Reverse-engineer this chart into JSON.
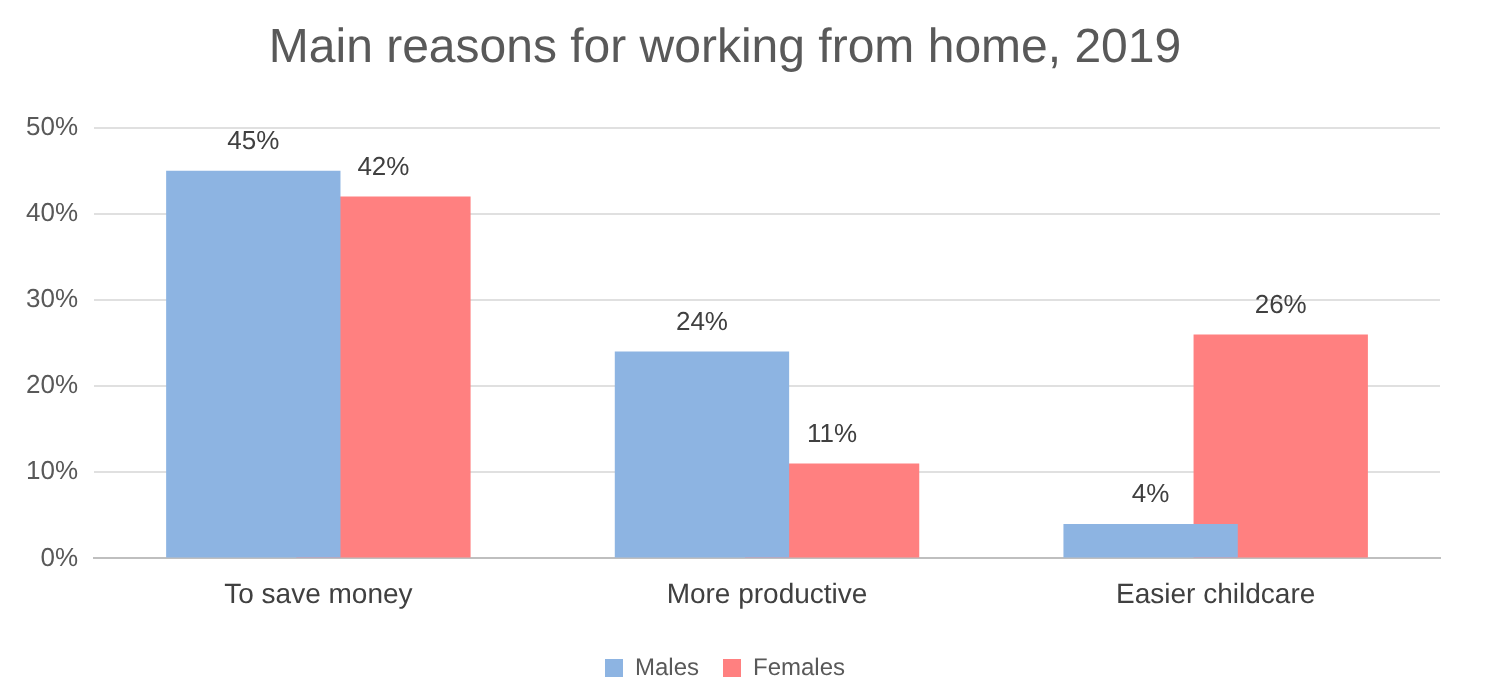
{
  "chart_data": {
    "type": "bar",
    "title": "Main reasons for working from home, 2019",
    "categories": [
      "To save money",
      "More productive",
      "Easier childcare"
    ],
    "series": [
      {
        "name": "Males",
        "color": "#8db4e2",
        "values": [
          45,
          24,
          4
        ],
        "value_labels": [
          "45%",
          "24%",
          "4%"
        ]
      },
      {
        "name": "Females",
        "color": "#ff8080",
        "values": [
          42,
          11,
          26
        ],
        "value_labels": [
          "42%",
          "11%",
          "26%"
        ]
      }
    ],
    "ylim": [
      0,
      50
    ],
    "yticks": [
      {
        "value": 0,
        "label": "0%"
      },
      {
        "value": 10,
        "label": "10%"
      },
      {
        "value": 20,
        "label": "20%"
      },
      {
        "value": 30,
        "label": "30%"
      },
      {
        "value": 40,
        "label": "40%"
      },
      {
        "value": 50,
        "label": "50%"
      }
    ],
    "grid": "y",
    "legend": "bottom"
  }
}
